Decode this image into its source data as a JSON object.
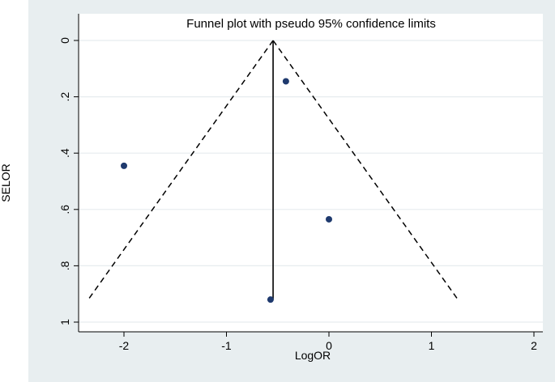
{
  "chart_data": {
    "type": "scatter",
    "title": "Funnel plot with pseudo 95% confidence limits",
    "xlabel": "LogOR",
    "ylabel": "SELOR",
    "xlim": [
      -2.4,
      2.0
    ],
    "ylim": [
      0,
      1
    ],
    "y_reversed": true,
    "x_ticks": [
      "-2",
      "-1",
      "0",
      "1",
      "2"
    ],
    "y_ticks": [
      "0",
      ".2",
      ".4",
      ".6",
      ".8",
      "1"
    ],
    "points": [
      {
        "x": -0.42,
        "y": 0.145
      },
      {
        "x": -2.0,
        "y": 0.445
      },
      {
        "x": 0.0,
        "y": 0.635
      },
      {
        "x": -0.57,
        "y": 0.92
      }
    ],
    "pooled_estimate": -0.545,
    "funnel_se_max": 0.92,
    "z": 1.96,
    "grid": true,
    "colors": {
      "background": "#e8eef0",
      "plot_area": "#ffffff",
      "grid": "#e6ecef",
      "points": "#1f3a6e",
      "lines": "#000000"
    }
  }
}
